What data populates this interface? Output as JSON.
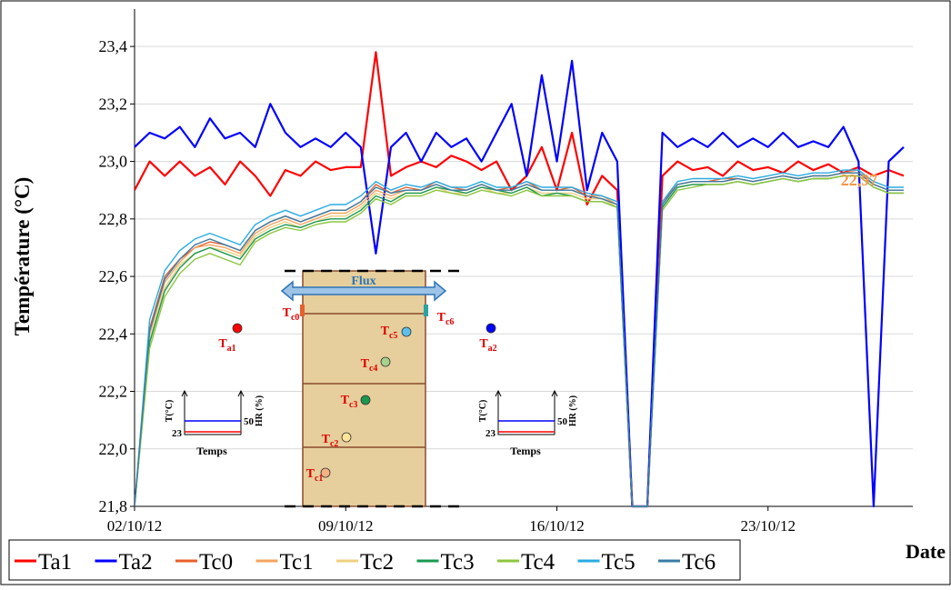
{
  "chart_data": {
    "type": "line",
    "y_label": "Température  (°C)",
    "x_label": "Date",
    "x": [
      0,
      0.5,
      1,
      1.5,
      2,
      2.5,
      3,
      3.5,
      4,
      4.5,
      5,
      5.5,
      6,
      6.5,
      7,
      7.5,
      8,
      8.5,
      9,
      9.5,
      10,
      10.5,
      11,
      11.5,
      12,
      12.5,
      13,
      13.5,
      14,
      14.5,
      15,
      15.5,
      16,
      16.5,
      17,
      17.5,
      18,
      18.5,
      19,
      19.5,
      20,
      20.5,
      21,
      21.5,
      22,
      22.5,
      23,
      23.5,
      24,
      24.5,
      25,
      25.5
    ],
    "xlim": [
      0,
      25.8
    ],
    "xticks": [
      {
        "value": 0,
        "label": "02/10/12"
      },
      {
        "value": 7,
        "label": "09/10/12"
      },
      {
        "value": 14,
        "label": "16/10/12"
      },
      {
        "value": 21,
        "label": "23/10/12"
      }
    ],
    "ylim": [
      21.8,
      23.53
    ],
    "yticks": [
      {
        "value": 21.8,
        "label": "21,8"
      },
      {
        "value": 22.0,
        "label": "22,0"
      },
      {
        "value": 22.2,
        "label": "22,2"
      },
      {
        "value": 22.4,
        "label": "22,4"
      },
      {
        "value": 22.6,
        "label": "22,6"
      },
      {
        "value": 22.8,
        "label": "22,8"
      },
      {
        "value": 23.0,
        "label": "23,0"
      },
      {
        "value": 23.2,
        "label": "23,2"
      },
      {
        "value": 23.4,
        "label": "23,4"
      }
    ],
    "grid": true,
    "series": [
      {
        "name": "Ta1",
        "color": "#ff0000",
        "values": [
          22.9,
          23.0,
          22.95,
          23.0,
          22.95,
          22.98,
          22.92,
          23.0,
          22.95,
          22.88,
          22.97,
          22.95,
          23.0,
          22.97,
          22.98,
          22.98,
          23.38,
          22.95,
          22.98,
          23.0,
          22.98,
          23.02,
          23.0,
          22.97,
          23.0,
          22.9,
          22.95,
          23.05,
          22.9,
          23.1,
          22.85,
          22.95,
          22.9,
          21.8,
          21.8,
          22.95,
          23.0,
          22.97,
          22.98,
          22.95,
          23.0,
          22.97,
          22.98,
          22.96,
          23.0,
          22.97,
          22.99,
          22.96,
          22.98,
          22.95,
          22.97,
          22.95
        ]
      },
      {
        "name": "Ta2",
        "color": "#0000ff",
        "values": [
          23.05,
          23.1,
          23.08,
          23.12,
          23.05,
          23.15,
          23.08,
          23.1,
          23.05,
          23.2,
          23.1,
          23.05,
          23.08,
          23.05,
          23.1,
          23.05,
          22.68,
          23.05,
          23.1,
          23.0,
          23.1,
          23.05,
          23.08,
          23.0,
          23.1,
          23.2,
          22.95,
          23.3,
          23.0,
          23.35,
          22.9,
          23.1,
          23.0,
          21.8,
          21.8,
          23.1,
          23.05,
          23.08,
          23.05,
          23.1,
          23.05,
          23.08,
          23.05,
          23.1,
          23.05,
          23.07,
          23.05,
          23.12,
          23.0,
          21.8,
          23.0,
          23.05
        ]
      },
      {
        "name": "Tc0",
        "color": "#e8602c",
        "values": [
          21.8,
          22.42,
          22.6,
          22.66,
          22.7,
          22.72,
          22.71,
          22.69,
          22.76,
          22.79,
          22.81,
          22.79,
          22.81,
          22.83,
          22.83,
          22.86,
          22.92,
          22.89,
          22.91,
          22.9,
          22.93,
          22.91,
          22.9,
          22.92,
          22.9,
          22.91,
          22.93,
          22.9,
          22.9,
          22.91,
          22.88,
          22.87,
          22.85,
          21.8,
          21.8,
          22.86,
          22.92,
          22.93,
          22.93,
          22.94,
          22.94,
          22.93,
          22.94,
          22.95,
          22.94,
          22.95,
          22.95,
          22.96,
          22.96,
          22.92,
          22.9,
          22.9
        ]
      },
      {
        "name": "Tc1",
        "color": "#f4a460",
        "values": [
          21.8,
          22.4,
          22.58,
          22.65,
          22.7,
          22.71,
          22.7,
          22.68,
          22.75,
          22.78,
          22.8,
          22.78,
          22.8,
          22.82,
          22.82,
          22.85,
          22.9,
          22.88,
          22.9,
          22.9,
          22.92,
          22.9,
          22.9,
          22.92,
          22.9,
          22.9,
          22.92,
          22.9,
          22.9,
          22.9,
          22.88,
          22.88,
          22.85,
          21.8,
          21.8,
          22.85,
          22.92,
          22.93,
          22.93,
          22.93,
          22.94,
          22.93,
          22.94,
          22.95,
          22.94,
          22.95,
          22.95,
          22.96,
          22.97,
          22.92,
          22.9,
          22.9
        ]
      },
      {
        "name": "Tc2",
        "color": "#f0d080",
        "values": [
          21.8,
          22.38,
          22.56,
          22.64,
          22.68,
          22.7,
          22.69,
          22.67,
          22.74,
          22.77,
          22.79,
          22.77,
          22.79,
          22.81,
          22.81,
          22.84,
          22.89,
          22.87,
          22.89,
          22.89,
          22.91,
          22.89,
          22.89,
          22.91,
          22.89,
          22.89,
          22.91,
          22.89,
          22.89,
          22.89,
          22.87,
          22.87,
          22.84,
          21.8,
          21.8,
          22.84,
          22.91,
          22.92,
          22.92,
          22.92,
          22.93,
          22.92,
          22.93,
          22.94,
          22.93,
          22.94,
          22.94,
          22.95,
          22.95,
          22.91,
          22.89,
          22.89
        ]
      },
      {
        "name": "Tc3",
        "color": "#1a9850",
        "values": [
          21.8,
          22.37,
          22.55,
          22.63,
          22.68,
          22.7,
          22.68,
          22.66,
          22.73,
          22.76,
          22.78,
          22.77,
          22.79,
          22.8,
          22.8,
          22.83,
          22.88,
          22.86,
          22.89,
          22.89,
          22.91,
          22.9,
          22.89,
          22.91,
          22.9,
          22.89,
          22.91,
          22.88,
          22.89,
          22.88,
          22.86,
          22.86,
          22.84,
          21.8,
          21.8,
          22.84,
          22.91,
          22.92,
          22.92,
          22.92,
          22.93,
          22.92,
          22.93,
          22.94,
          22.93,
          22.94,
          22.94,
          22.95,
          22.95,
          22.91,
          22.89,
          22.89
        ]
      },
      {
        "name": "Tc4",
        "color": "#8cc63f",
        "values": [
          21.8,
          22.35,
          22.53,
          22.61,
          22.66,
          22.68,
          22.66,
          22.64,
          22.72,
          22.75,
          22.77,
          22.76,
          22.78,
          22.79,
          22.79,
          22.82,
          22.87,
          22.85,
          22.88,
          22.88,
          22.9,
          22.89,
          22.88,
          22.9,
          22.89,
          22.88,
          22.9,
          22.88,
          22.88,
          22.88,
          22.86,
          22.86,
          22.84,
          21.8,
          21.8,
          22.83,
          22.9,
          22.91,
          22.92,
          22.92,
          22.93,
          22.92,
          22.93,
          22.94,
          22.93,
          22.94,
          22.94,
          22.95,
          22.95,
          22.91,
          22.89,
          22.89
        ]
      },
      {
        "name": "Tc5",
        "color": "#29abe2",
        "values": [
          21.8,
          22.45,
          22.62,
          22.69,
          22.73,
          22.75,
          22.73,
          22.71,
          22.78,
          22.81,
          22.83,
          22.81,
          22.83,
          22.85,
          22.85,
          22.88,
          22.93,
          22.9,
          22.92,
          22.91,
          22.93,
          22.91,
          22.91,
          22.93,
          22.91,
          22.91,
          22.93,
          22.91,
          22.91,
          22.91,
          22.89,
          22.88,
          22.86,
          21.8,
          21.8,
          22.86,
          22.93,
          22.94,
          22.94,
          22.94,
          22.95,
          22.94,
          22.95,
          22.96,
          22.95,
          22.96,
          22.96,
          22.97,
          22.97,
          22.93,
          22.91,
          22.91
        ]
      },
      {
        "name": "Tc6",
        "color": "#3a7ca5",
        "values": [
          21.8,
          22.41,
          22.59,
          22.66,
          22.71,
          22.73,
          22.71,
          22.69,
          22.76,
          22.79,
          22.81,
          22.79,
          22.81,
          22.83,
          22.83,
          22.86,
          22.91,
          22.89,
          22.9,
          22.9,
          22.92,
          22.9,
          22.9,
          22.92,
          22.9,
          22.9,
          22.92,
          22.9,
          22.9,
          22.9,
          22.88,
          22.87,
          22.85,
          21.8,
          21.8,
          22.85,
          22.92,
          22.93,
          22.93,
          22.93,
          22.94,
          22.93,
          22.94,
          22.95,
          22.94,
          22.95,
          22.95,
          22.96,
          22.96,
          22.92,
          22.9,
          22.9
        ]
      }
    ],
    "annotations": [
      {
        "text": "22,97",
        "color": "#f79646"
      }
    ]
  },
  "diagram": {
    "flux": "Flux",
    "labels": [
      {
        "base": "T",
        "sub": "a1"
      },
      {
        "base": "T",
        "sub": "a2"
      },
      {
        "base": "T",
        "sub": "c0"
      },
      {
        "base": "T",
        "sub": "c6"
      },
      {
        "base": "T",
        "sub": "c5"
      },
      {
        "base": "T",
        "sub": "c4"
      },
      {
        "base": "T",
        "sub": "c3"
      },
      {
        "base": "T",
        "sub": "c2"
      },
      {
        "base": "T",
        "sub": "c1"
      }
    ],
    "inset": {
      "y_left": "T(°C)",
      "y_right": "HR (%)",
      "left_value": "23",
      "right_value": "50",
      "x": "Temps"
    }
  }
}
